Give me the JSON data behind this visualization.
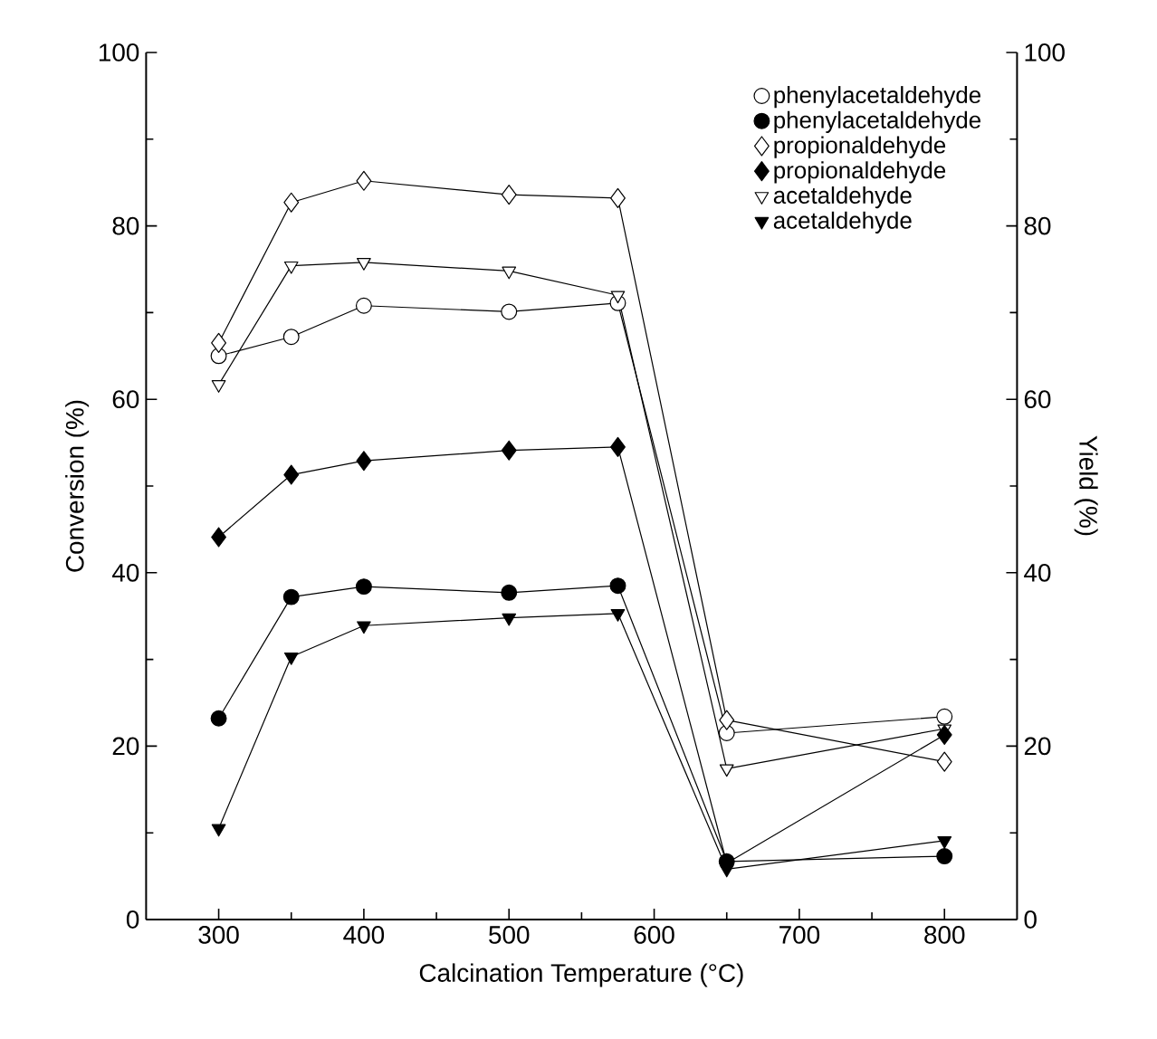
{
  "chart_data": {
    "type": "line",
    "xlabel": "Calcination Temperature (°C)",
    "ylabel": "Conversion (%)",
    "y2label": "Yield (%)",
    "x": [
      300,
      350,
      400,
      500,
      575,
      650,
      800
    ],
    "xlim": [
      250,
      850
    ],
    "xticks": [
      300,
      400,
      500,
      600,
      700,
      800
    ],
    "ylim": [
      0,
      100
    ],
    "yticks": [
      0,
      20,
      40,
      60,
      80,
      100
    ],
    "y2lim": [
      0,
      100
    ],
    "y2ticks": [
      0,
      20,
      40,
      60,
      80,
      100
    ],
    "legend": "top right",
    "grid": false,
    "series": [
      {
        "name": "phenylacetaldehyde",
        "color": "#000000",
        "marker": "circle",
        "axis": "y",
        "values": [
          65,
          67.2,
          70.8,
          70.1,
          71.1,
          21.5,
          23.4
        ]
      },
      {
        "name": "phenylacetaldehyde",
        "color": "#000000",
        "marker": "circle",
        "axis": "y2",
        "values": [
          23.2,
          37.2,
          38.4,
          37.7,
          38.5,
          6.7,
          7.3
        ]
      },
      {
        "name": "propionaldehyde",
        "color": "#000000",
        "marker": "diamond",
        "axis": "y",
        "values": [
          66.5,
          82.7,
          85.2,
          83.6,
          83.2,
          23,
          18.2
        ]
      },
      {
        "name": "propionaldehyde",
        "color": "#000000",
        "marker": "diamond",
        "axis": "y2",
        "values": [
          44.1,
          51.3,
          52.9,
          54.1,
          54.5,
          6.5,
          21.3
        ]
      },
      {
        "name": "acetaldehyde",
        "color": "#000000",
        "marker": "triangle",
        "axis": "y",
        "values": [
          61.7,
          75.4,
          75.8,
          74.8,
          72,
          17.4,
          22
        ]
      },
      {
        "name": "acetaldehyde",
        "color": "#000000",
        "marker": "triangle",
        "axis": "y2",
        "values": [
          10.5,
          30.3,
          33.9,
          34.8,
          35.3,
          5.8,
          9.1
        ]
      }
    ]
  }
}
